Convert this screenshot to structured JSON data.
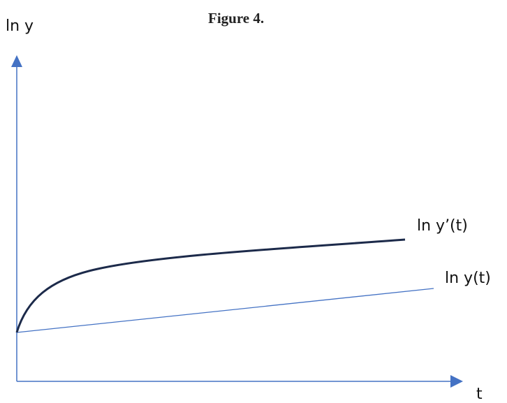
{
  "figure": {
    "title": "Figure 4.",
    "y_axis_label": "ln y",
    "x_axis_label": "t",
    "curves": [
      {
        "label": "ln y’(t)",
        "color": "#1c2a4a",
        "shape": "concave"
      },
      {
        "label": "ln y(t)",
        "color": "#4472c4",
        "shape": "linear"
      }
    ],
    "axis_color": "#4472c4"
  }
}
